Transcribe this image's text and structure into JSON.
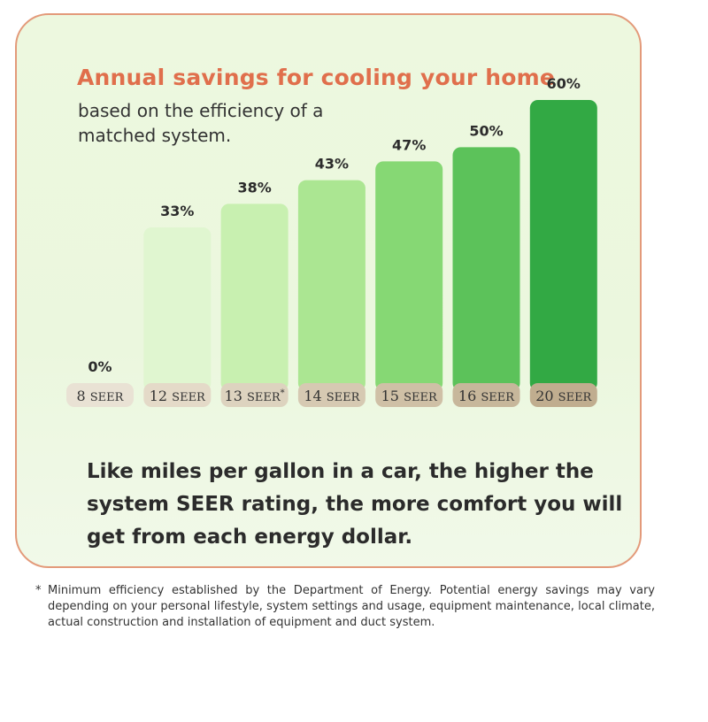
{
  "title": "Annual savings for cooling your home",
  "subtitle": "based on the efficiency of a matched system.",
  "tagline": "Like miles per gallon in a car, the higher the system SEER rating, the more comfort you will get from each energy dollar.",
  "footnote": {
    "marker": "*",
    "text": "Minimum efficiency established by the Department of Energy. Potential energy savings may vary depending on your personal lifestyle, system settings and usage, equipment maintenance, local climate, actual construction and installation of equipment and duct system."
  },
  "colors": {
    "title": "#e06f4c",
    "border": "#e39a7a",
    "bars": [
      "#e6f6d6",
      "#e0f6d0",
      "#c8f0b0",
      "#abe692",
      "#86d874",
      "#5cc25a",
      "#32a944"
    ],
    "labels": [
      "#e9e2d4",
      "#e4dac8",
      "#ddd3bf",
      "#d6c9b2",
      "#cfc0a6",
      "#c7b79b",
      "#c0ad8f"
    ]
  },
  "chart_data": {
    "type": "bar",
    "title": "Annual savings for cooling your home",
    "xlabel": "",
    "ylabel": "",
    "ylim": [
      0,
      60
    ],
    "grid": false,
    "categories": [
      {
        "number": "8",
        "unit": "SEER",
        "mark": ""
      },
      {
        "number": "12",
        "unit": "SEER",
        "mark": ""
      },
      {
        "number": "13",
        "unit": "SEER",
        "mark": "*"
      },
      {
        "number": "14",
        "unit": "SEER",
        "mark": ""
      },
      {
        "number": "15",
        "unit": "SEER",
        "mark": ""
      },
      {
        "number": "16",
        "unit": "SEER",
        "mark": ""
      },
      {
        "number": "20",
        "unit": "SEER",
        "mark": ""
      }
    ],
    "values": [
      0,
      33,
      38,
      43,
      47,
      50,
      60
    ],
    "value_labels": [
      "0%",
      "33%",
      "38%",
      "43%",
      "47%",
      "50%",
      "60%"
    ]
  }
}
